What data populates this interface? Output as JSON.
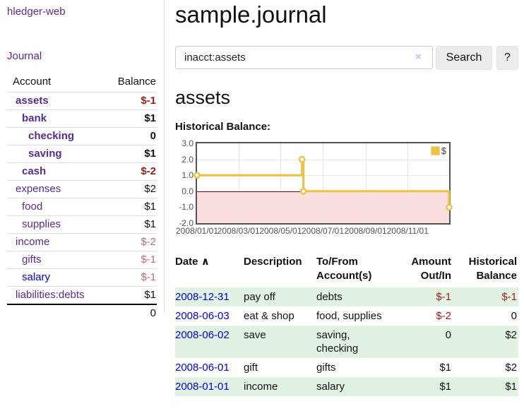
{
  "sidebar": {
    "brand": "hledger-web",
    "journal_link": "Journal",
    "accounts_table": {
      "headers": [
        "Account",
        "Balance"
      ],
      "rows": [
        {
          "name": "assets",
          "depth": 1,
          "emph": true,
          "balance": "$-1",
          "balance_style": "neg-strong"
        },
        {
          "name": "bank",
          "depth": 2,
          "emph": true,
          "balance": "$1",
          "balance_style": "pos"
        },
        {
          "name": "checking",
          "depth": 3,
          "emph": true,
          "balance": "0",
          "balance_style": "pos"
        },
        {
          "name": "saving",
          "depth": 3,
          "emph": true,
          "balance": "$1",
          "balance_style": "pos"
        },
        {
          "name": "cash",
          "depth": 2,
          "emph": true,
          "balance": "$-2",
          "balance_style": "neg-strong"
        },
        {
          "name": "expenses",
          "depth": 1,
          "emph": false,
          "balance": "$2",
          "balance_style": "pos"
        },
        {
          "name": "food",
          "depth": 2,
          "emph": false,
          "balance": "$1",
          "balance_style": "pos"
        },
        {
          "name": "supplies",
          "depth": 2,
          "emph": false,
          "balance": "$1",
          "balance_style": "pos"
        },
        {
          "name": "income",
          "depth": 1,
          "emph": false,
          "balance": "$-2",
          "balance_style": "neg-soft"
        },
        {
          "name": "gifts",
          "depth": 2,
          "emph": false,
          "balance": "$-1",
          "balance_style": "neg-soft"
        },
        {
          "name": "salary",
          "depth": 2,
          "emph": false,
          "link_style": "unvisited",
          "balance": "$-1",
          "balance_style": "neg-soft"
        },
        {
          "name": "liabilities:debts",
          "depth": 1,
          "emph": false,
          "balance": "$1",
          "balance_style": "pos"
        }
      ],
      "total": "0"
    }
  },
  "header": {
    "title": "sample.journal"
  },
  "search": {
    "value": "inacct:assets",
    "clear_icon": "×",
    "button_label": "Search",
    "help_label": "?"
  },
  "account_page": {
    "heading": "assets",
    "chart_label": "Historical Balance:"
  },
  "chart_data": {
    "type": "line",
    "mode": "step",
    "title": "assets Historical Balance",
    "legend": {
      "position": "top-right",
      "entries": [
        {
          "label": "$",
          "color": "#edc240"
        }
      ]
    },
    "points": [
      {
        "date": "2008-01-01",
        "day": 0,
        "value": 1
      },
      {
        "date": "2008-06-01",
        "day": 152,
        "value": 2
      },
      {
        "date": "2008-06-03",
        "day": 154,
        "value": 0
      },
      {
        "date": "2008-12-31",
        "day": 365,
        "value": -1
      }
    ],
    "xlim_days": [
      0,
      365
    ],
    "ylim": [
      -2,
      3
    ],
    "yticks": [
      {
        "value": 3,
        "label": "3.0"
      },
      {
        "value": 2,
        "label": "2.0"
      },
      {
        "value": 1,
        "label": "1.0"
      },
      {
        "value": 0,
        "label": "0.0"
      },
      {
        "value": -1,
        "label": "-1.0"
      },
      {
        "value": -2,
        "label": "-2.0"
      }
    ],
    "xticks": [
      {
        "day": 0,
        "label": "2008/01/01"
      },
      {
        "day": 60,
        "label": "2008/03/01"
      },
      {
        "day": 121,
        "label": "2008/05/01"
      },
      {
        "day": 182,
        "label": "2008/07/01"
      },
      {
        "day": 244,
        "label": "2008/09/01"
      },
      {
        "day": 305,
        "label": "2008/11/01"
      }
    ],
    "grid": true,
    "colors": {
      "line": "#edc240",
      "zero_line": "#8b0000",
      "negative_fill": "#fbdede",
      "grid": "#e8e8e8",
      "border": "#545454",
      "tick_text": "#545454"
    }
  },
  "transactions": {
    "sort_icon": "∧",
    "headers": [
      "Date",
      "Description",
      "To/From Account(s)",
      "Amount Out/In",
      "Historical Balance"
    ],
    "rows": [
      {
        "date": "2008-12-31",
        "description": "pay off",
        "accounts": "debts",
        "amount": "$-1",
        "amount_style": "neg",
        "balance": "$-1",
        "balance_style": "neg"
      },
      {
        "date": "2008-06-03",
        "description": "eat & shop",
        "accounts": "food, supplies",
        "amount": "$-2",
        "amount_style": "neg",
        "balance": "0",
        "balance_style": "pos"
      },
      {
        "date": "2008-06-02",
        "description": "save",
        "accounts": "saving, checking",
        "amount": "0",
        "amount_style": "pos",
        "balance": "$2",
        "balance_style": "pos"
      },
      {
        "date": "2008-06-01",
        "description": "gift",
        "accounts": "gifts",
        "amount": "$1",
        "amount_style": "pos",
        "balance": "$2",
        "balance_style": "pos"
      },
      {
        "date": "2008-01-01",
        "description": "income",
        "accounts": "salary",
        "amount": "$1",
        "amount_style": "pos",
        "balance": "$1",
        "balance_style": "pos"
      }
    ]
  }
}
